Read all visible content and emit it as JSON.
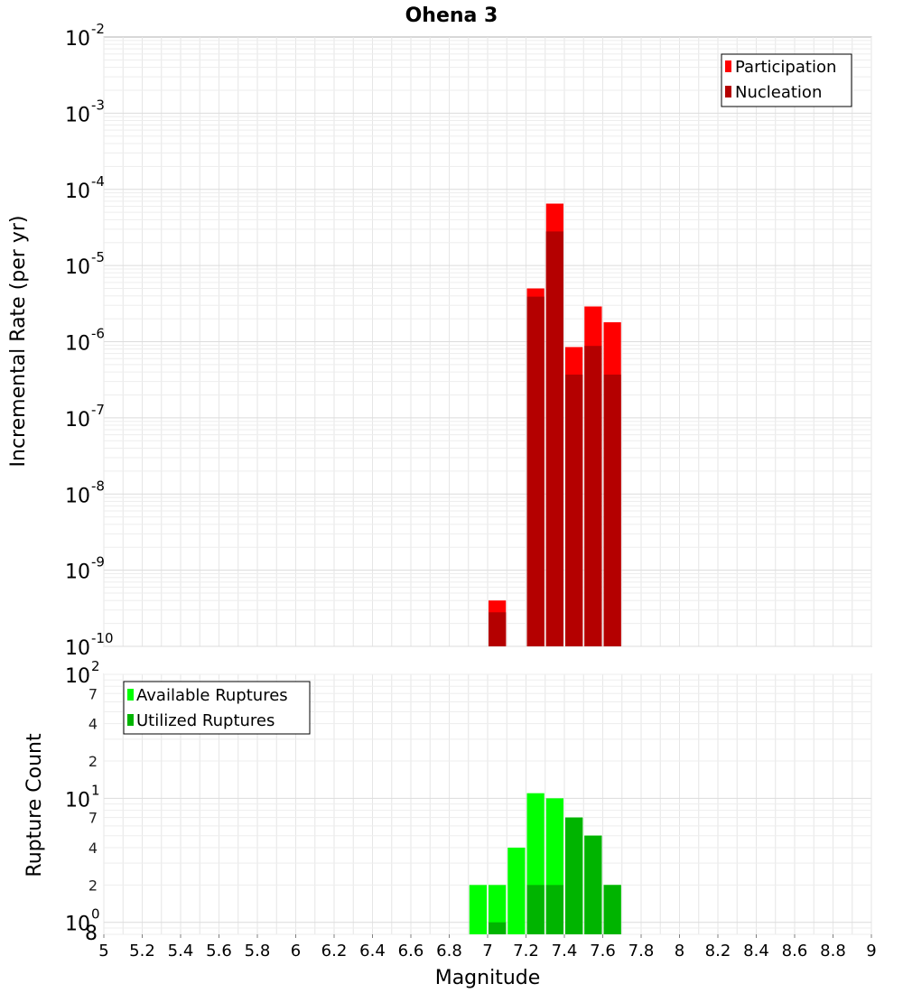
{
  "chart_data": {
    "type": "bar",
    "title": "Ohena 3",
    "xlabel": "Magnitude",
    "xlim": [
      5,
      9
    ],
    "x_ticks": [
      "5",
      "5.2",
      "5.4",
      "5.6",
      "5.8",
      "6",
      "6.2",
      "6.4",
      "6.6",
      "6.8",
      "7",
      "7.2",
      "7.4",
      "7.6",
      "7.8",
      "8",
      "8.2",
      "8.4",
      "8.6",
      "8.8",
      "9"
    ],
    "bin_width": 0.1,
    "panels": [
      {
        "name": "rate",
        "ylabel": "Incremental Rate (per yr)",
        "yscale": "log",
        "ylim": [
          1e-10,
          0.01
        ],
        "y_tick_exponents": [
          "-2",
          "-3",
          "-4",
          "-5",
          "-6",
          "-7",
          "-8",
          "-9",
          "-10"
        ],
        "legend": {
          "position": "top-right",
          "entries": [
            {
              "label": "Participation",
              "color": "#ff0000"
            },
            {
              "label": "Nucleation",
              "color": "#b40000"
            }
          ]
        },
        "series": [
          {
            "name": "Participation",
            "color": "#ff0000",
            "x": [
              7.05,
              7.25,
              7.35,
              7.45,
              7.55,
              7.65
            ],
            "values": [
              4e-10,
              5e-06,
              6.5e-05,
              8.5e-07,
              2.9e-06,
              1.8e-06
            ]
          },
          {
            "name": "Nucleation",
            "color": "#b40000",
            "x": [
              7.05,
              7.25,
              7.35,
              7.45,
              7.55,
              7.65
            ],
            "values": [
              2.8e-10,
              3.9e-06,
              2.8e-05,
              3.7e-07,
              8.8e-07,
              3.7e-07
            ]
          }
        ]
      },
      {
        "name": "count",
        "ylabel": "Rupture Count",
        "yscale": "log",
        "ylim": [
          0.8,
          100
        ],
        "major_ticks": [
          {
            "value": 1,
            "base": "10",
            "exp": "0"
          },
          {
            "value": 10,
            "base": "10",
            "exp": "1"
          },
          {
            "value": 100,
            "base": "10",
            "exp": "2"
          }
        ],
        "minor_tick_labels": [
          {
            "value": 0.8,
            "label": "8"
          },
          {
            "value": 2,
            "label": "2"
          },
          {
            "value": 4,
            "label": "4"
          },
          {
            "value": 7,
            "label": "7"
          },
          {
            "value": 20,
            "label": "2"
          },
          {
            "value": 40,
            "label": "4"
          },
          {
            "value": 70,
            "label": "7"
          }
        ],
        "legend": {
          "position": "top-left",
          "entries": [
            {
              "label": "Available Ruptures",
              "color": "#00ff00"
            },
            {
              "label": "Utilized Ruptures",
              "color": "#00b400"
            }
          ]
        },
        "series": [
          {
            "name": "Available Ruptures",
            "color": "#00ff00",
            "x": [
              6.95,
              7.05,
              7.15,
              7.25,
              7.35,
              7.45,
              7.55,
              7.65
            ],
            "values": [
              2,
              2,
              4,
              11,
              10,
              7,
              5,
              2
            ]
          },
          {
            "name": "Utilized Ruptures",
            "color": "#00b400",
            "x": [
              7.05,
              7.25,
              7.35,
              7.45,
              7.55,
              7.65
            ],
            "values": [
              1,
              2,
              2,
              7,
              5,
              2
            ]
          }
        ]
      }
    ]
  }
}
